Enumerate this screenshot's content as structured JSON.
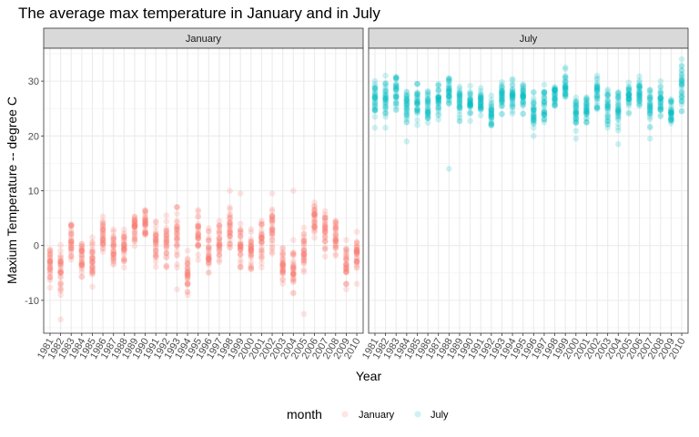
{
  "chart_data": {
    "type": "scatter",
    "title": "The average max temperature in January and in July",
    "xlabel": "Year",
    "ylabel": "Maxium Temperature -- degree C",
    "ylim": [
      -16,
      36
    ],
    "yticks": [
      -10,
      0,
      10,
      20,
      30
    ],
    "grid": true,
    "legend": {
      "title": "month",
      "position": "bottom"
    },
    "facets": [
      {
        "name": "January",
        "color": "#F8766D",
        "years": [
          1981,
          1982,
          1983,
          1984,
          1985,
          1986,
          1987,
          1988,
          1989,
          1990,
          1991,
          1992,
          1993,
          1994,
          1995,
          1996,
          1997,
          1998,
          1999,
          2000,
          2001,
          2002,
          2003,
          2004,
          2005,
          2006,
          2007,
          2008,
          2009,
          2010
        ],
        "ranges": [
          [
            -8,
            1
          ],
          [
            -9,
            0.5
          ],
          [
            -3,
            5
          ],
          [
            -6,
            1.5
          ],
          [
            -7,
            1.5
          ],
          [
            -3,
            5.5
          ],
          [
            -4,
            3
          ],
          [
            -4,
            3.5
          ],
          [
            -1,
            6.5
          ],
          [
            0,
            8.5
          ],
          [
            -4,
            6
          ],
          [
            -4,
            5.5
          ],
          [
            -4,
            7
          ],
          [
            -10,
            0
          ],
          [
            -3,
            6.5
          ],
          [
            -5,
            3.5
          ],
          [
            -3,
            4.5
          ],
          [
            -3,
            9
          ],
          [
            -4,
            4
          ],
          [
            -5,
            3
          ],
          [
            -4,
            4.5
          ],
          [
            -2,
            8
          ],
          [
            -9,
            2
          ],
          [
            -9,
            1
          ],
          [
            -6,
            3.5
          ],
          [
            0,
            8.5
          ],
          [
            -2,
            6.5
          ],
          [
            -3,
            6
          ],
          [
            -7,
            1
          ],
          [
            -5,
            2.5
          ]
        ],
        "outliers": [
          [
            1982,
            -13.5
          ],
          [
            1998,
            10
          ],
          [
            1999,
            9.5
          ],
          [
            2002,
            9.5
          ],
          [
            2004,
            10
          ],
          [
            2005,
            -12.5
          ],
          [
            1985,
            -7.5
          ],
          [
            1993,
            -8
          ],
          [
            2009,
            -8
          ],
          [
            2010,
            -7
          ]
        ]
      },
      {
        "name": "July",
        "color": "#00BFC4",
        "years": [
          1981,
          1982,
          1983,
          1984,
          1985,
          1986,
          1987,
          1988,
          1989,
          1990,
          1991,
          1992,
          1993,
          1994,
          1995,
          1996,
          1997,
          1998,
          1999,
          2000,
          2001,
          2002,
          2003,
          2004,
          2005,
          2006,
          2007,
          2008,
          2009,
          2010
        ],
        "ranges": [
          [
            23.5,
            30.5
          ],
          [
            23.5,
            31
          ],
          [
            24.5,
            32
          ],
          [
            22.5,
            29
          ],
          [
            22,
            29.5
          ],
          [
            21.5,
            29
          ],
          [
            23,
            29.5
          ],
          [
            24,
            31.5
          ],
          [
            22.5,
            29.5
          ],
          [
            22,
            30
          ],
          [
            23,
            29.5
          ],
          [
            21,
            27.5
          ],
          [
            24,
            31
          ],
          [
            23.5,
            31
          ],
          [
            24,
            30
          ],
          [
            21.5,
            28
          ],
          [
            22.5,
            30
          ],
          [
            24,
            30
          ],
          [
            25,
            32.5
          ],
          [
            20.5,
            27
          ],
          [
            22,
            27.5
          ],
          [
            24,
            31
          ],
          [
            21,
            29
          ],
          [
            21,
            29.5
          ],
          [
            24,
            30
          ],
          [
            24.5,
            31
          ],
          [
            21.5,
            29
          ],
          [
            22.5,
            30
          ],
          [
            21,
            28
          ],
          [
            24.5,
            33
          ]
        ],
        "outliers": [
          [
            1988,
            14
          ],
          [
            1984,
            19
          ],
          [
            2004,
            18.5
          ],
          [
            1981,
            21.5
          ],
          [
            1982,
            21.5
          ],
          [
            1996,
            20
          ],
          [
            2000,
            19.5
          ],
          [
            2007,
            19.5
          ],
          [
            1993,
            24
          ],
          [
            2010,
            34
          ]
        ]
      }
    ]
  }
}
